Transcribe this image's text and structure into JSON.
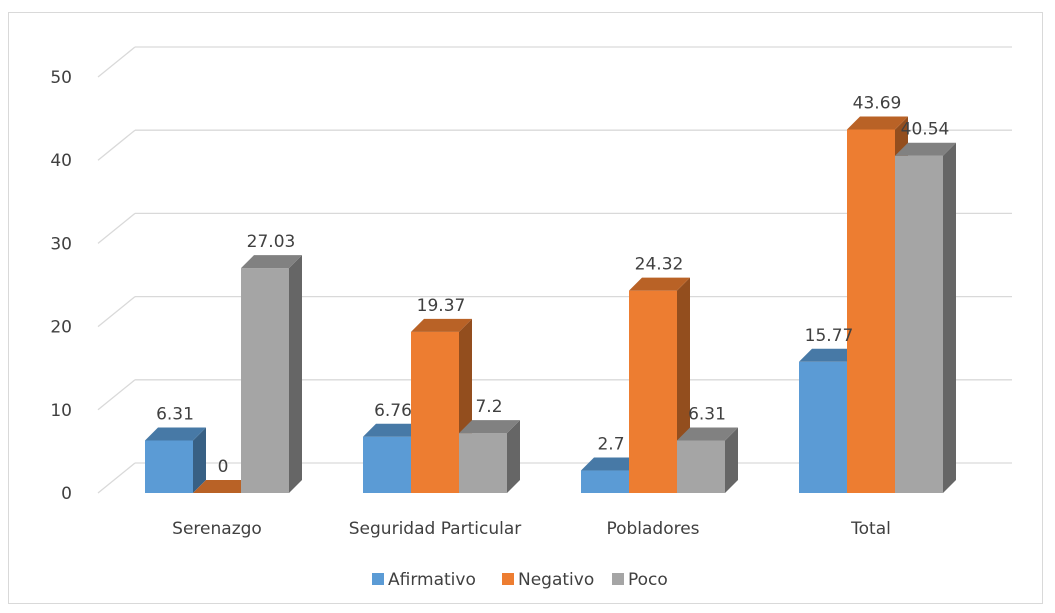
{
  "chart_data": {
    "type": "bar",
    "style": "3d-clustered-column",
    "categories": [
      "Serenazgo",
      "Seguridad Particular",
      "Pobladores",
      "Total"
    ],
    "series": [
      {
        "name": "Afirmativo",
        "values": [
          6.31,
          6.76,
          2.7,
          15.77
        ],
        "color": "#5b9bd5"
      },
      {
        "name": "Negativo",
        "values": [
          0,
          19.37,
          24.32,
          43.69
        ],
        "color": "#ed7d31"
      },
      {
        "name": "Poco",
        "values": [
          27.03,
          7.2,
          6.31,
          40.54
        ],
        "color": "#a5a5a5"
      }
    ],
    "y_ticks": [
      "0",
      "10",
      "20",
      "30",
      "40",
      "50"
    ],
    "ylim": [
      0,
      50
    ],
    "grid": true,
    "legend_position": "bottom"
  }
}
